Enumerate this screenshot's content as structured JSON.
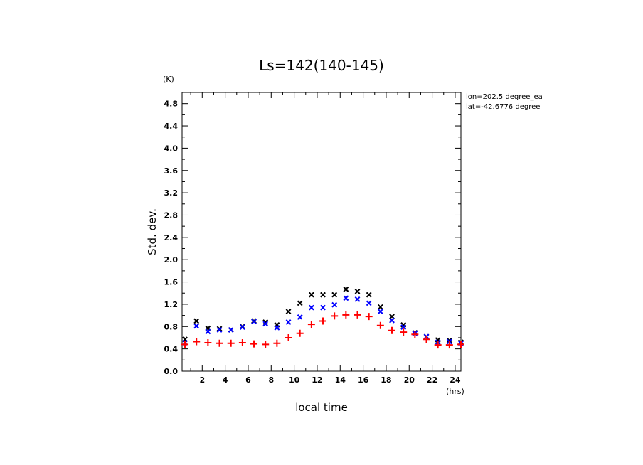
{
  "chart_data": {
    "type": "scatter",
    "title": "Ls=142(140-145)",
    "xlabel": "local time",
    "ylabel": "Std. dev.",
    "x_unit": "(hrs)",
    "y_unit": "(K)",
    "annotations": [
      "lon=202.5 degree_ea",
      "lat=-42.6776 degree"
    ],
    "xlim": [
      0.25,
      24.5
    ],
    "ylim": [
      0.0,
      5.0
    ],
    "xticks": [
      2,
      4,
      6,
      8,
      10,
      12,
      14,
      16,
      18,
      20,
      22,
      24
    ],
    "yticks": [
      0.0,
      0.4,
      0.8,
      1.2,
      1.6,
      2.0,
      2.4,
      2.8,
      3.2,
      3.6,
      4.0,
      4.4,
      4.8
    ],
    "x": [
      0.5,
      1.5,
      2.5,
      3.5,
      4.5,
      5.5,
      6.5,
      7.5,
      8.5,
      9.5,
      10.5,
      11.5,
      12.5,
      13.5,
      14.5,
      15.5,
      16.5,
      17.5,
      18.5,
      19.5,
      20.5,
      21.5,
      22.5,
      23.5,
      24.5
    ],
    "series": [
      {
        "color": "#000000",
        "marker": "x",
        "values": [
          0.57,
          0.9,
          0.77,
          0.76,
          0.74,
          0.8,
          0.9,
          0.88,
          0.83,
          1.07,
          1.22,
          1.37,
          1.37,
          1.37,
          1.47,
          1.43,
          1.37,
          1.15,
          0.98,
          0.83,
          0.69,
          0.62,
          0.56,
          0.55,
          0.52
        ]
      },
      {
        "color": "#0000ff",
        "marker": "x",
        "values": [
          0.51,
          0.81,
          0.71,
          0.74,
          0.74,
          0.79,
          0.89,
          0.85,
          0.78,
          0.88,
          0.97,
          1.14,
          1.14,
          1.19,
          1.31,
          1.29,
          1.22,
          1.07,
          0.91,
          0.79,
          0.68,
          0.62,
          0.52,
          0.53,
          0.5
        ]
      },
      {
        "color": "#ff0000",
        "marker": "+",
        "values": [
          0.48,
          0.53,
          0.51,
          0.5,
          0.5,
          0.51,
          0.49,
          0.48,
          0.5,
          0.6,
          0.68,
          0.84,
          0.9,
          0.99,
          1.01,
          1.01,
          0.98,
          0.82,
          0.73,
          0.7,
          0.66,
          0.57,
          0.47,
          0.47,
          0.48
        ]
      }
    ]
  }
}
